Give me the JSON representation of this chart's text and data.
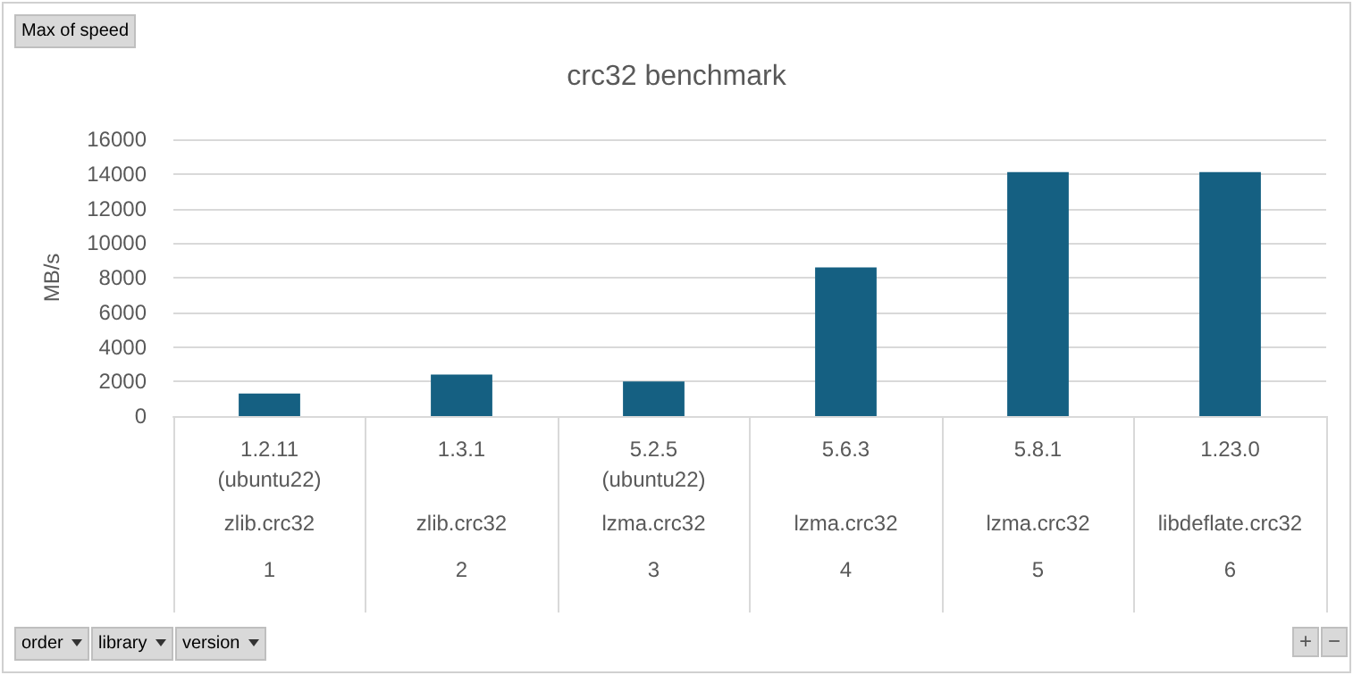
{
  "chart_data": {
    "type": "bar",
    "title": "crc32 benchmark",
    "ylabel": "MB/s",
    "categories": [
      "1.2.11\n(ubuntu22)\nzlib.crc32\n1",
      "1.3.1\nzlib.crc32\n2",
      "5.2.5\n(ubuntu22)\nlzma.crc32\n3",
      "5.6.3\nlzma.crc32\n4",
      "5.8.1\nlzma.crc32\n5",
      "1.23.0\nlibdeflate.crc32\n6"
    ],
    "values": [
      1300,
      2400,
      2000,
      8600,
      14100,
      14100
    ],
    "color": "#156082",
    "ylim": [
      0,
      16000
    ],
    "yticks": [
      0,
      2000,
      4000,
      6000,
      8000,
      10000,
      12000,
      14000,
      16000
    ],
    "grid": "y",
    "annotations": [
      "Max of speed",
      "order",
      "library",
      "version",
      "+",
      "−"
    ]
  }
}
